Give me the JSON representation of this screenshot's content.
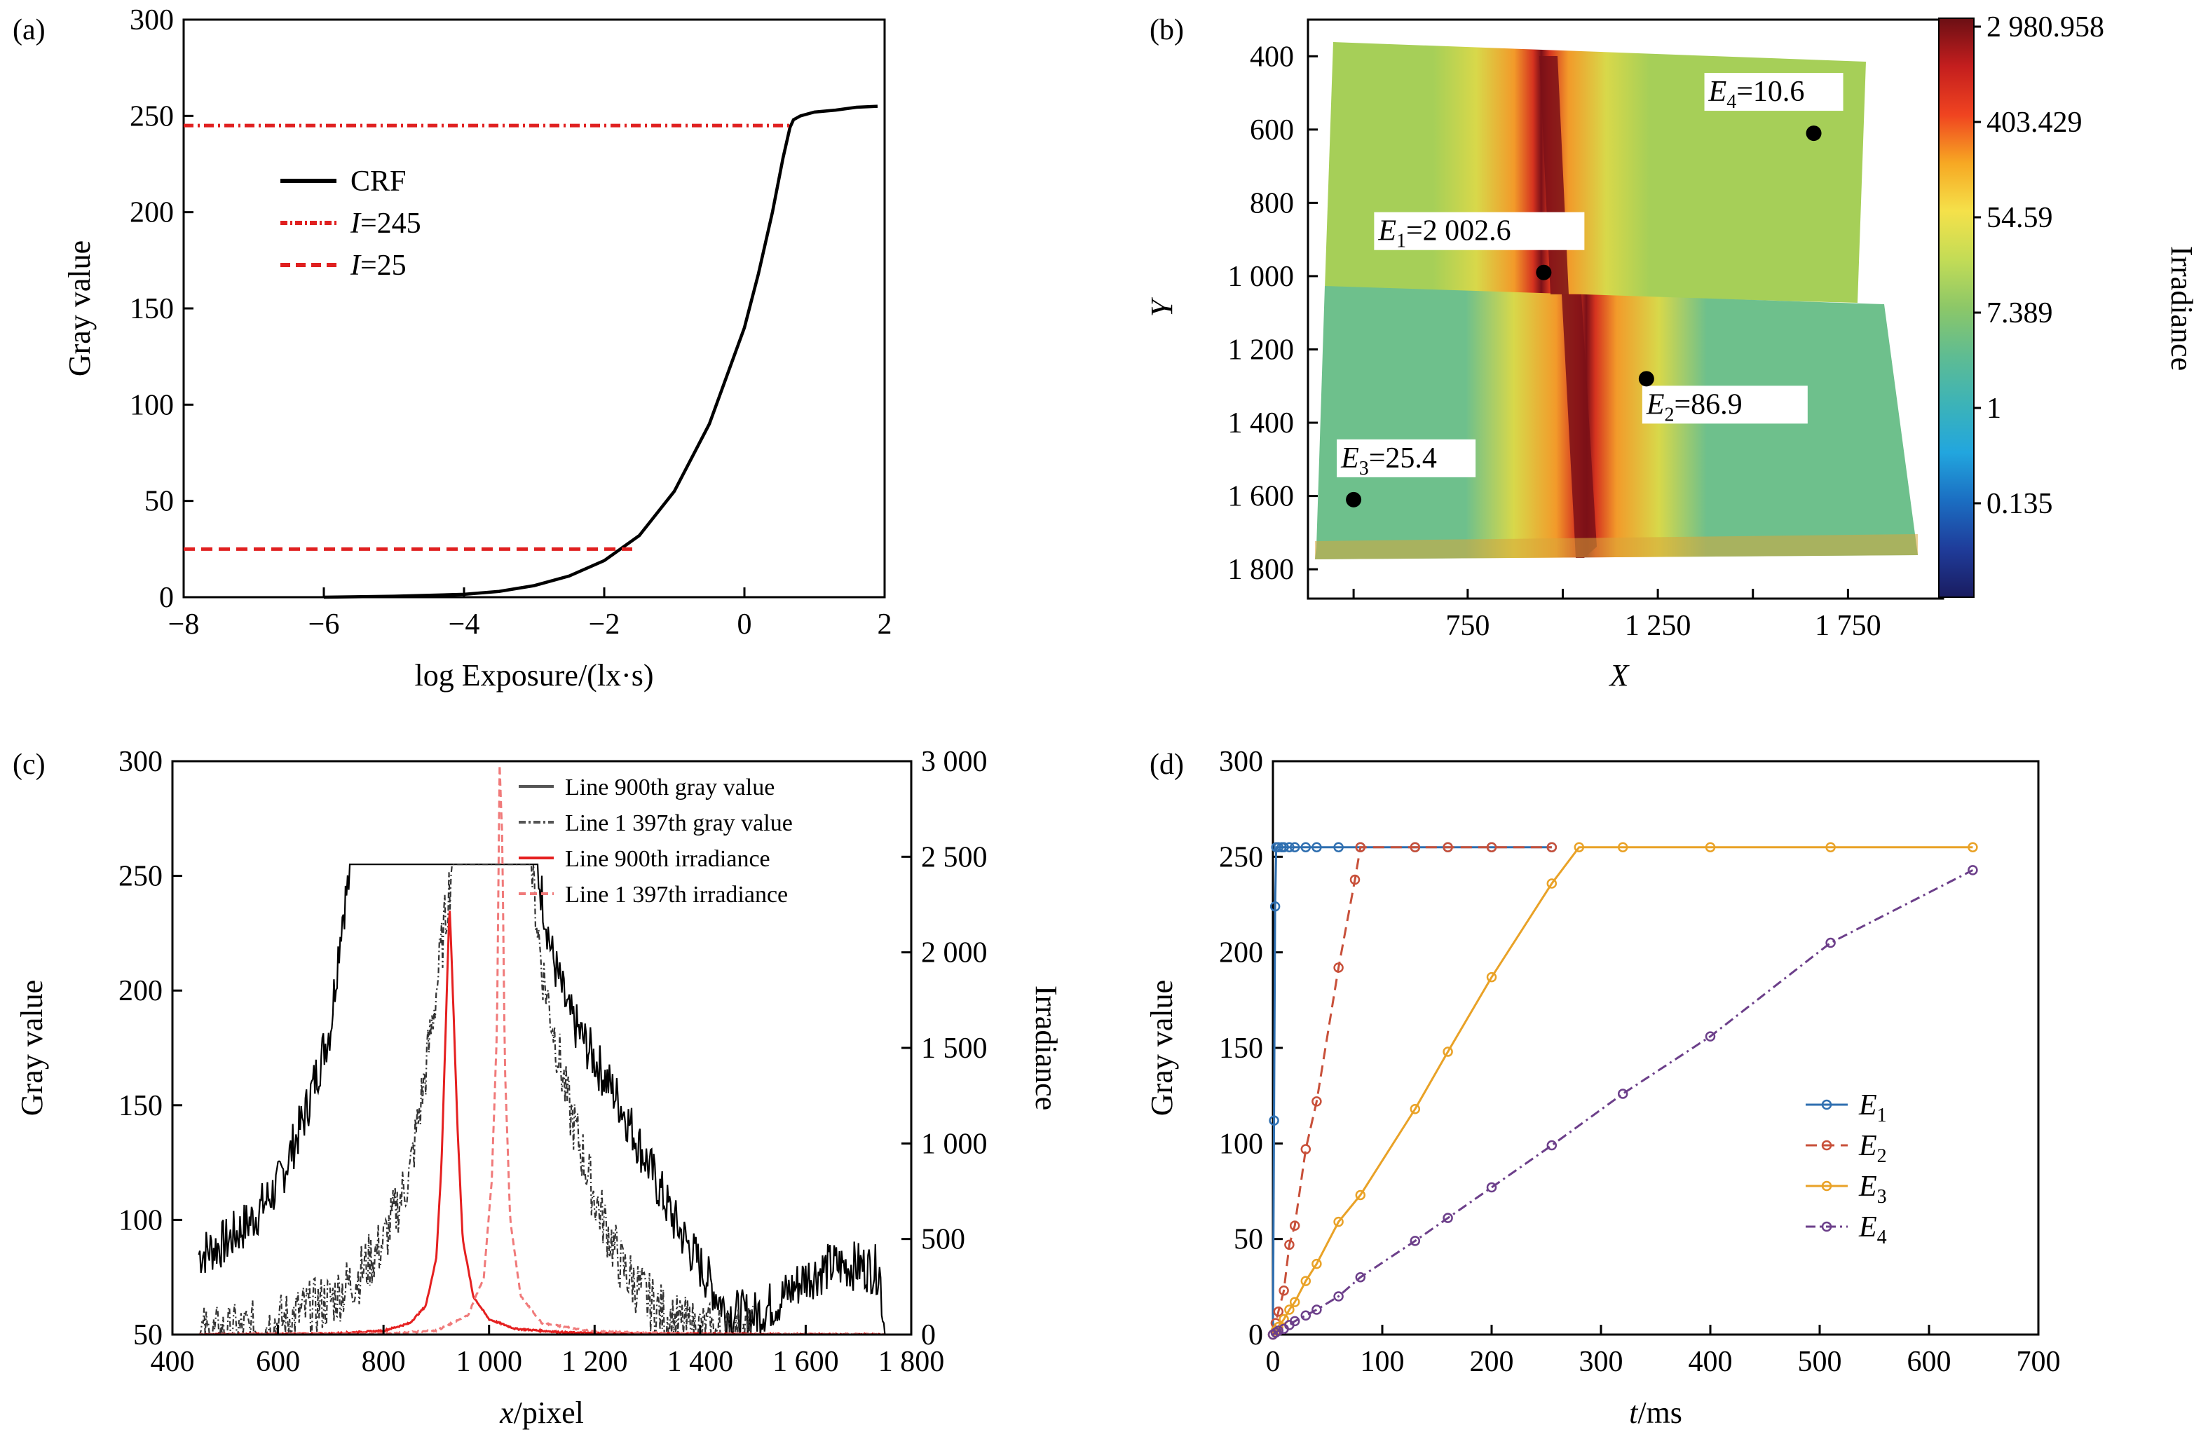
{
  "chart_data": [
    {
      "panel_label": "(a)",
      "type": "line",
      "xlabel": "log Exposure/(lx·s)",
      "ylabel": "Gray value",
      "xlim": [
        -8,
        2
      ],
      "ylim": [
        0,
        300
      ],
      "xticks": [
        -8,
        -6,
        -4,
        -2,
        0,
        2
      ],
      "yticks": [
        0,
        50,
        100,
        150,
        200,
        250,
        300
      ],
      "legend": [
        {
          "name": "CRF",
          "prefix": "",
          "suffix": ""
        },
        {
          "name": "I=245",
          "prefix": "I",
          "suffix": "=245"
        },
        {
          "name": "I=25",
          "prefix": "I",
          "suffix": "=25"
        }
      ],
      "series": [
        {
          "name": "CRF",
          "color": "#000000",
          "style": "solid",
          "x": [
            -6,
            -5,
            -4,
            -3.5,
            -3,
            -2.5,
            -2,
            -1.5,
            -1,
            -0.5,
            0,
            0.2,
            0.4,
            0.55,
            0.65,
            0.7,
            0.8,
            1.0,
            1.3,
            1.6,
            1.9
          ],
          "y": [
            0,
            0.5,
            1.5,
            3,
            6,
            11,
            19,
            32,
            55,
            90,
            140,
            168,
            200,
            228,
            244,
            248,
            250,
            252,
            253,
            254.5,
            255
          ]
        },
        {
          "name": "I=245",
          "color": "#e02020",
          "style": "dashdot",
          "x": [
            -8,
            0.65
          ],
          "y": [
            245,
            245
          ]
        },
        {
          "name": "I=25",
          "color": "#e02020",
          "style": "dashed",
          "x": [
            -8,
            -1.6
          ],
          "y": [
            25,
            25
          ]
        }
      ]
    },
    {
      "panel_label": "(b)",
      "type": "heatmap",
      "xlabel": "X",
      "ylabel": "Y",
      "colorbar_label": "Irradiance",
      "xticks": [
        "750",
        "1 250",
        "1 750"
      ],
      "xtick_values": [
        750,
        1250,
        1750
      ],
      "yticks": [
        "400",
        "600",
        "800",
        "1 000",
        "1 200",
        "1 400",
        "1 600",
        "1 800"
      ],
      "ytick_values": [
        400,
        600,
        800,
        1000,
        1200,
        1400,
        1600,
        1800
      ],
      "xlim": [
        330,
        2000
      ],
      "ylim": [
        300,
        1880
      ],
      "colorbar_ticks": [
        "2 980.958",
        "403.429",
        "54.59",
        "7.389",
        "1",
        "0.135"
      ],
      "colorbar_colors": [
        "#6b0f14",
        "#c41e1e",
        "#f04420",
        "#f7a823",
        "#f5e14a",
        "#c3dc56",
        "#8cc768",
        "#5fbc92",
        "#3cb3b8",
        "#22a6de",
        "#1b6ec2",
        "#1f3c9a",
        "#1a1c60"
      ],
      "points": [
        {
          "label": "E1=2 002.6",
          "sym": "E",
          "sub": "1",
          "val": "=2 002.6",
          "x": 950,
          "y": 990
        },
        {
          "label": "E2=86.9",
          "sym": "E",
          "sub": "2",
          "val": "=86.9",
          "x": 1220,
          "y": 1280
        },
        {
          "label": "E3=25.4",
          "sym": "E",
          "sub": "3",
          "val": "=25.4",
          "x": 450,
          "y": 1610
        },
        {
          "label": "E4=10.6",
          "sym": "E",
          "sub": "4",
          "val": "=10.6",
          "x": 1660,
          "y": 610
        }
      ]
    },
    {
      "panel_label": "(c)",
      "type": "line",
      "xlabel": "x/pixel",
      "xlabel_italic_part": "x",
      "xlabel_rest": "/pixel",
      "ylabel": "Gray value",
      "ylabel_right": "Irradiance",
      "xlim": [
        400,
        1800
      ],
      "ylim": [
        50,
        300
      ],
      "ylim_right": [
        0,
        3000
      ],
      "xticks": [
        "400",
        "600",
        "800",
        "1 000",
        "1 200",
        "1 400",
        "1 600",
        "1 800"
      ],
      "xtick_values": [
        400,
        600,
        800,
        1000,
        1200,
        1400,
        1600,
        1800
      ],
      "yticks": [
        50,
        100,
        150,
        200,
        250,
        300
      ],
      "yticks_right": [
        "0",
        "500",
        "1 000",
        "1 500",
        "2 000",
        "2 500",
        "3 000"
      ],
      "ytick_right_values": [
        0,
        500,
        1000,
        1500,
        2000,
        2500,
        3000
      ],
      "legend": [
        {
          "name": "Line 900th gray value",
          "color": "#555555",
          "style": "solid"
        },
        {
          "name": "Line 1 397th gray value",
          "color": "#555555",
          "style": "dashdot"
        },
        {
          "name": "Line 900th irradiance",
          "color": "#e52020",
          "style": "solid"
        },
        {
          "name": "Line 1 397th irradiance",
          "color": "#f07a7a",
          "style": "dashed"
        }
      ],
      "series": [
        {
          "name": "Line 900th gray value",
          "color": "#000000",
          "style": "solid",
          "axis": "left",
          "x": [
            450,
            500,
            550,
            600,
            650,
            700,
            720,
            740,
            1090,
            1120,
            1150,
            1200,
            1250,
            1300,
            1350,
            1400,
            1450,
            1500,
            1550,
            1600,
            1650,
            1700,
            1740,
            1750
          ],
          "y": [
            85,
            90,
            100,
            115,
            145,
            185,
            230,
            255,
            255,
            215,
            190,
            170,
            150,
            125,
            100,
            80,
            60,
            58,
            65,
            75,
            80,
            80,
            78,
            50
          ]
        },
        {
          "name": "Line 1 397th gray value",
          "color": "#333333",
          "style": "dashdot",
          "axis": "left",
          "x": [
            450,
            500,
            550,
            600,
            650,
            700,
            750,
            800,
            850,
            880,
            900,
            930,
            1080,
            1100,
            1150,
            1200,
            1250,
            1300,
            1350,
            1400,
            1450,
            1500
          ],
          "y": [
            50,
            50,
            52,
            55,
            60,
            65,
            75,
            90,
            120,
            165,
            200,
            255,
            255,
            210,
            150,
            110,
            80,
            65,
            55,
            52,
            50,
            50
          ]
        },
        {
          "name": "Line 900th irradiance",
          "color": "#e52020",
          "style": "solid",
          "axis": "right",
          "x": [
            450,
            700,
            800,
            850,
            880,
            900,
            910,
            920,
            925,
            930,
            940,
            950,
            970,
            1000,
            1050,
            1150,
            1300,
            1750
          ],
          "y": [
            0,
            5,
            20,
            60,
            150,
            400,
            900,
            1800,
            2250,
            1900,
            1100,
            500,
            200,
            80,
            30,
            10,
            5,
            0
          ]
        },
        {
          "name": "Line 1 397th irradiance",
          "color": "#f07a7a",
          "style": "dashed",
          "axis": "right",
          "x": [
            450,
            800,
            900,
            960,
            990,
            1005,
            1015,
            1020,
            1025,
            1030,
            1040,
            1060,
            1100,
            1200,
            1400,
            1750
          ],
          "y": [
            0,
            5,
            20,
            100,
            300,
            800,
            1600,
            2980,
            2600,
            1400,
            600,
            200,
            60,
            15,
            3,
            0
          ]
        }
      ]
    },
    {
      "panel_label": "(d)",
      "type": "line",
      "xlabel": "t/ms",
      "xlabel_italic_part": "t",
      "xlabel_rest": "/ms",
      "ylabel": "Gray value",
      "xlim": [
        0,
        700
      ],
      "ylim": [
        0,
        300
      ],
      "xticks": [
        0,
        100,
        200,
        300,
        400,
        500,
        600,
        700
      ],
      "yticks": [
        0,
        50,
        100,
        150,
        200,
        250,
        300
      ],
      "series": [
        {
          "name": "E1",
          "sub": "1",
          "color": "#2f6fb0",
          "style": "solid",
          "x": [
            0,
            1,
            2,
            3,
            5,
            8,
            10,
            15,
            20,
            30,
            40,
            60,
            80,
            130,
            160,
            200,
            255
          ],
          "y": [
            0,
            112,
            224,
            255,
            255,
            255,
            255,
            255,
            255,
            255,
            255,
            255,
            255,
            255,
            255,
            255,
            255
          ]
        },
        {
          "name": "E2",
          "sub": "2",
          "color": "#c8503a",
          "style": "dashed",
          "x": [
            0,
            2.5,
            5,
            10,
            15,
            20,
            30,
            40,
            60,
            75,
            80,
            130,
            160,
            200,
            255
          ],
          "y": [
            0,
            6,
            12,
            23,
            47,
            57,
            97,
            122,
            192,
            238,
            255,
            255,
            255,
            255,
            255
          ]
        },
        {
          "name": "E3",
          "sub": "3",
          "color": "#e9a227",
          "style": "solid",
          "x": [
            0,
            2.5,
            5,
            10,
            15,
            20,
            30,
            40,
            60,
            80,
            130,
            160,
            200,
            255,
            280,
            320,
            400,
            510,
            640
          ],
          "y": [
            0,
            2,
            4,
            8,
            13,
            17,
            28,
            37,
            59,
            73,
            118,
            148,
            187,
            236,
            255,
            255,
            255,
            255,
            255
          ]
        },
        {
          "name": "E4",
          "sub": "4",
          "color": "#6c3f8a",
          "style": "dashdot",
          "x": [
            0,
            2.5,
            5,
            10,
            15,
            20,
            30,
            40,
            60,
            80,
            130,
            160,
            200,
            255,
            320,
            400,
            510,
            640
          ],
          "y": [
            0,
            1,
            2,
            3,
            5,
            7,
            10,
            13,
            20,
            30,
            49,
            61,
            77,
            99,
            126,
            156,
            205,
            243
          ]
        }
      ]
    }
  ]
}
